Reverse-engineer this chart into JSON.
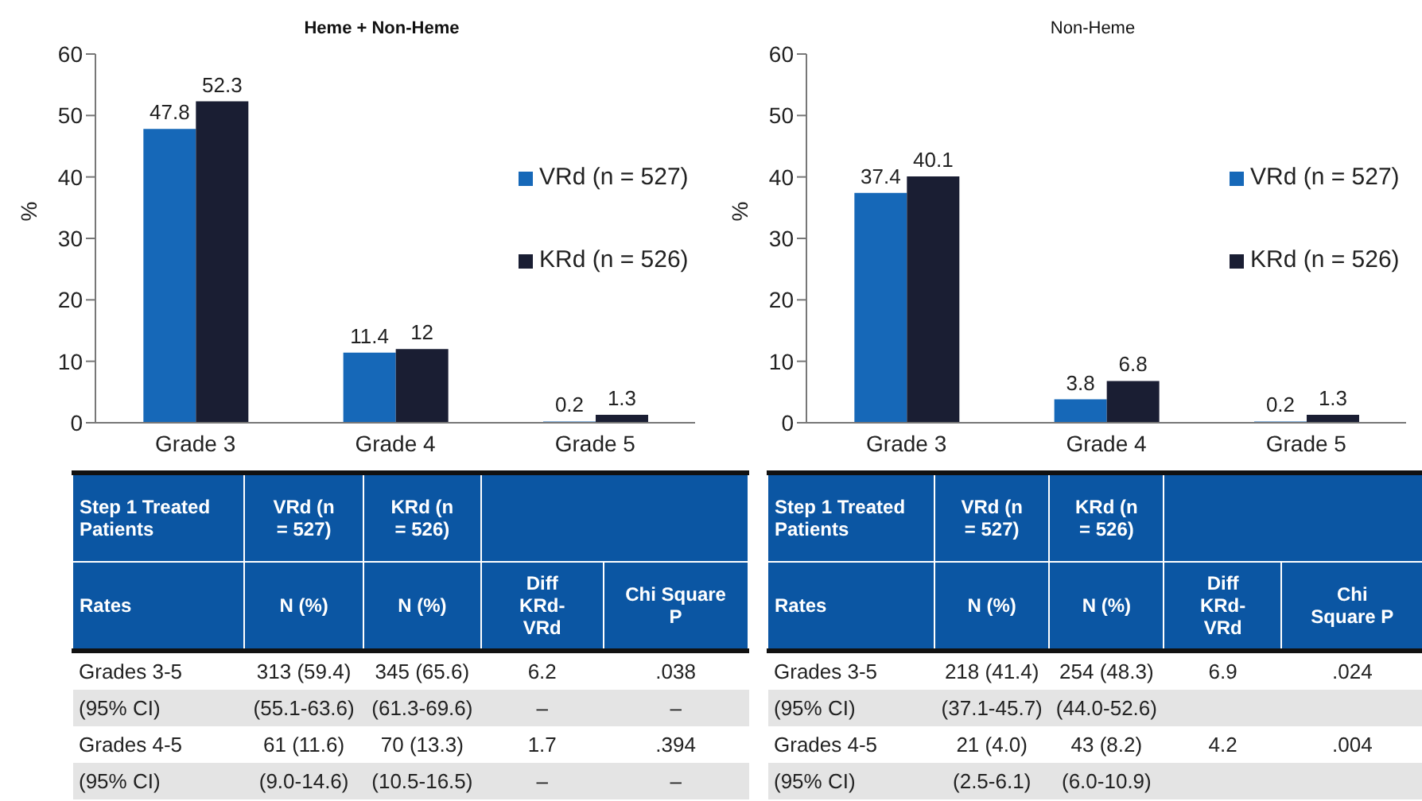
{
  "chart_data": [
    {
      "type": "bar",
      "title": "Heme + Non-Heme",
      "ylabel": "%",
      "categories": [
        "Grade 3",
        "Grade 4",
        "Grade 5"
      ],
      "series": [
        {
          "name": "VRd (n = 527)",
          "color": "#1668b8",
          "values": [
            47.8,
            11.4,
            0.2
          ]
        },
        {
          "name": "KRd (n = 526)",
          "color": "#1a1e33",
          "values": [
            52.3,
            12,
            1.3
          ]
        }
      ],
      "ylim": [
        0,
        60
      ],
      "yticks": [
        0,
        10,
        20,
        30,
        40,
        50,
        60
      ],
      "data_labels": true,
      "legend": "right",
      "grid": false
    },
    {
      "type": "bar",
      "title": "Non-Heme",
      "ylabel": "%",
      "categories": [
        "Grade 3",
        "Grade 4",
        "Grade 5"
      ],
      "series": [
        {
          "name": "VRd (n = 527)",
          "color": "#1668b8",
          "values": [
            37.4,
            3.8,
            0.2
          ]
        },
        {
          "name": "KRd (n = 526)",
          "color": "#1a1e33",
          "values": [
            40.1,
            6.8,
            1.3
          ]
        }
      ],
      "ylim": [
        0,
        60
      ],
      "yticks": [
        0,
        10,
        20,
        30,
        40,
        50,
        60
      ],
      "data_labels": true,
      "legend": "right",
      "grid": false
    },
    {
      "type": "other",
      "annotations": [
        "Step 1 Treated Patients",
        "VRd (n = 527)",
        "KRd (n = 526)",
        "Rates",
        "N (%)",
        "N (%)",
        "Diff KRd-VRd",
        "Chi Square P",
        "Grades 3-5",
        "313 (59.4)",
        "345 (65.6)",
        "6.2",
        ".038",
        "(95% CI)",
        "(55.1-63.6)",
        "(61.3-69.6)",
        "–",
        "–",
        "Grades 4-5",
        "61 (11.6)",
        "70 (13.3)",
        "1.7",
        ".394",
        "(95% CI)",
        "(9.0-14.6)",
        "(10.5-16.5)",
        "–",
        "–"
      ]
    },
    {
      "type": "other",
      "annotations": [
        "Step 1 Treated Patients",
        "VRd (n = 527)",
        "KRd (n = 526)",
        "Rates",
        "N (%)",
        "N (%)",
        "Diff KRd-VRd",
        "Chi Square P",
        "Grades 3-5",
        "218 (41.4)",
        "254 (48.3)",
        "6.9",
        ".024",
        "(95% CI)",
        "(37.1-45.7)",
        "(44.0-52.6)",
        null,
        null,
        "Grades 4-5",
        "21 (4.0)",
        "43 (8.2)",
        "4.2",
        ".004",
        "(95% CI)",
        "(2.5-6.1)",
        "(6.0-10.9)",
        null,
        null
      ]
    }
  ]
}
